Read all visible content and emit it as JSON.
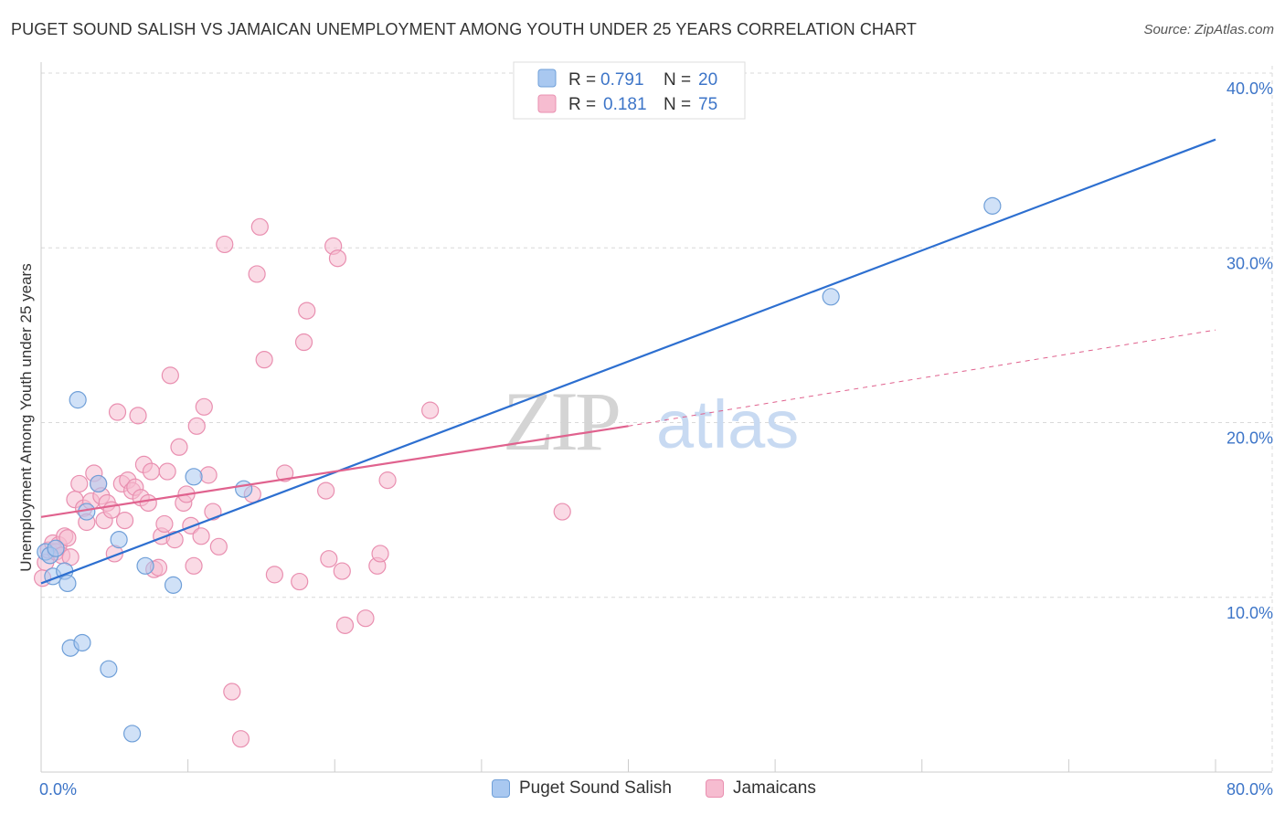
{
  "title": "PUGET SOUND SALISH VS JAMAICAN UNEMPLOYMENT AMONG YOUTH UNDER 25 YEARS CORRELATION CHART",
  "source": "Source: ZipAtlas.com",
  "watermark": {
    "zip": "ZIP",
    "atlas": "atlas"
  },
  "colors": {
    "blue_fill": "#a9c8f0",
    "blue_stroke": "#6f9fd8",
    "blue_line": "#2d6fd0",
    "pink_fill": "#f6bcd0",
    "pink_stroke": "#e98fb0",
    "pink_line": "#e0628e",
    "axis_text": "#3d75c8",
    "grid": "#d9d9d9"
  },
  "legend": {
    "r_label": "R =",
    "n_label": "N =",
    "rows": [
      {
        "r_value": "0.791",
        "n_value": "20"
      },
      {
        "r_value": "0.181",
        "n_value": "75"
      }
    ]
  },
  "chart_data": {
    "type": "scatter",
    "title": "PUGET SOUND SALISH VS JAMAICAN UNEMPLOYMENT AMONG YOUTH UNDER 25 YEARS CORRELATION CHART",
    "xlabel": "",
    "ylabel": "Unemployment Among Youth under 25 years",
    "xlim": [
      0,
      80
    ],
    "ylim": [
      0,
      40
    ],
    "x_tick_labels": [
      "0.0%",
      "80.0%"
    ],
    "y_tick_labels": [
      "10.0%",
      "20.0%",
      "30.0%",
      "40.0%"
    ],
    "y_ticks": [
      10,
      20,
      30,
      40
    ],
    "series": [
      {
        "name": "Puget Sound Salish",
        "r": 0.791,
        "n": 20,
        "trend": {
          "x0": 0,
          "y0": 10.8,
          "x1": 80,
          "y1": 36.2
        },
        "points": [
          [
            0.3,
            12.6
          ],
          [
            0.6,
            12.4
          ],
          [
            0.8,
            11.2
          ],
          [
            1.0,
            12.8
          ],
          [
            1.6,
            11.5
          ],
          [
            1.8,
            10.8
          ],
          [
            2.0,
            7.1
          ],
          [
            2.5,
            21.3
          ],
          [
            2.8,
            7.4
          ],
          [
            3.1,
            14.9
          ],
          [
            3.9,
            16.5
          ],
          [
            4.6,
            5.9
          ],
          [
            5.3,
            13.3
          ],
          [
            6.2,
            2.2
          ],
          [
            7.1,
            11.8
          ],
          [
            9.0,
            10.7
          ],
          [
            10.4,
            16.9
          ],
          [
            13.8,
            16.2
          ],
          [
            53.8,
            27.2
          ],
          [
            64.8,
            32.4
          ]
        ]
      },
      {
        "name": "Jamaicans",
        "r": 0.181,
        "n": 75,
        "trend": {
          "x0": 0,
          "y0": 14.6,
          "x1": 40,
          "y1": 19.8,
          "dash_x1": 80,
          "dash_y1": 25.3
        },
        "points": [
          [
            0.1,
            11.1
          ],
          [
            0.3,
            12.0
          ],
          [
            0.5,
            12.7
          ],
          [
            0.8,
            13.1
          ],
          [
            1.0,
            12.6
          ],
          [
            1.2,
            13.0
          ],
          [
            1.4,
            12.4
          ],
          [
            1.6,
            13.5
          ],
          [
            1.8,
            13.4
          ],
          [
            2.0,
            12.3
          ],
          [
            2.3,
            15.6
          ],
          [
            2.6,
            16.5
          ],
          [
            2.9,
            15.1
          ],
          [
            3.1,
            14.3
          ],
          [
            3.4,
            15.5
          ],
          [
            3.6,
            17.1
          ],
          [
            3.9,
            16.5
          ],
          [
            4.1,
            15.8
          ],
          [
            4.3,
            14.4
          ],
          [
            4.5,
            15.4
          ],
          [
            4.8,
            15.0
          ],
          [
            5.0,
            12.5
          ],
          [
            5.2,
            20.6
          ],
          [
            5.5,
            16.5
          ],
          [
            5.7,
            14.4
          ],
          [
            5.9,
            16.7
          ],
          [
            6.2,
            16.1
          ],
          [
            6.4,
            16.3
          ],
          [
            6.6,
            20.4
          ],
          [
            6.8,
            15.7
          ],
          [
            7.0,
            17.6
          ],
          [
            7.3,
            15.4
          ],
          [
            7.5,
            17.2
          ],
          [
            7.7,
            11.6
          ],
          [
            8.0,
            11.7
          ],
          [
            8.2,
            13.5
          ],
          [
            8.4,
            14.2
          ],
          [
            8.6,
            17.2
          ],
          [
            8.8,
            22.7
          ],
          [
            9.1,
            13.3
          ],
          [
            9.4,
            18.6
          ],
          [
            9.7,
            15.4
          ],
          [
            9.9,
            15.9
          ],
          [
            10.2,
            14.1
          ],
          [
            10.4,
            11.8
          ],
          [
            10.6,
            19.8
          ],
          [
            10.9,
            13.5
          ],
          [
            11.1,
            20.9
          ],
          [
            11.4,
            17.0
          ],
          [
            11.7,
            14.9
          ],
          [
            12.1,
            12.9
          ],
          [
            12.5,
            30.2
          ],
          [
            13.0,
            4.6
          ],
          [
            13.6,
            1.9
          ],
          [
            14.4,
            15.9
          ],
          [
            14.7,
            28.5
          ],
          [
            14.9,
            31.2
          ],
          [
            15.2,
            23.6
          ],
          [
            15.9,
            11.3
          ],
          [
            16.6,
            17.1
          ],
          [
            17.6,
            10.9
          ],
          [
            17.9,
            24.6
          ],
          [
            18.1,
            26.4
          ],
          [
            19.4,
            16.1
          ],
          [
            19.6,
            12.2
          ],
          [
            19.9,
            30.1
          ],
          [
            20.2,
            29.4
          ],
          [
            20.5,
            11.5
          ],
          [
            20.7,
            8.4
          ],
          [
            22.1,
            8.8
          ],
          [
            22.9,
            11.8
          ],
          [
            23.1,
            12.5
          ],
          [
            23.6,
            16.7
          ],
          [
            26.5,
            20.7
          ],
          [
            35.5,
            14.9
          ]
        ]
      }
    ]
  },
  "bottom_legend": [
    "Puget Sound Salish",
    "Jamaicans"
  ]
}
